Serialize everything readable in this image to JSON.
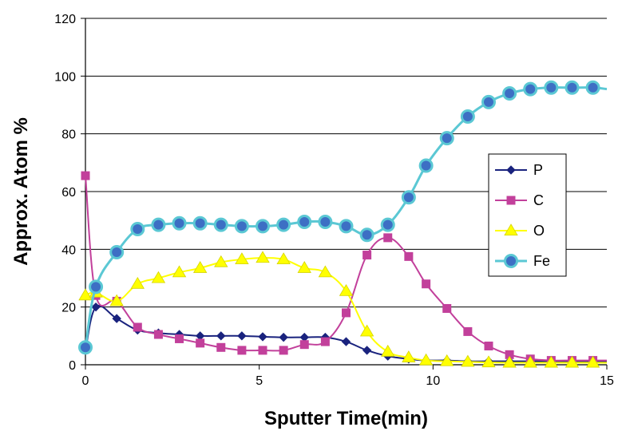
{
  "chart_data": {
    "type": "line",
    "title": "",
    "xlabel": "Sputter Time(min)",
    "ylabel": "Approx. Atom %",
    "xlim": [
      0,
      15
    ],
    "ylim": [
      0,
      120
    ],
    "xticks": [
      "0",
      "5",
      "10",
      "15"
    ],
    "yticks": [
      "0",
      "20",
      "40",
      "60",
      "80",
      "100",
      "120"
    ],
    "grid": "horizontal",
    "legend_position": "right",
    "series": [
      {
        "name": "P",
        "color": "#1a237e",
        "marker": "diamond",
        "x": [
          0,
          0.3,
          0.9,
          1.5,
          2.1,
          2.7,
          3.3,
          3.9,
          4.5,
          5.1,
          5.7,
          6.3,
          6.9,
          7.5,
          8.1,
          8.7,
          9.3,
          9.8,
          10.4,
          11.0,
          11.6,
          12.2,
          12.8,
          13.4,
          14.0,
          14.6,
          15.0
        ],
        "y": [
          5,
          20,
          16,
          12,
          11,
          10.5,
          10,
          10,
          10,
          9.7,
          9.5,
          9.5,
          9.5,
          8,
          5,
          3,
          2,
          1.5,
          1.5,
          1.2,
          1.2,
          1.2,
          1.2,
          1.2,
          1.2,
          1.2,
          1.2
        ]
      },
      {
        "name": "C",
        "color": "#c2409b",
        "marker": "square",
        "x": [
          0,
          0.3,
          0.9,
          1.5,
          2.1,
          2.7,
          3.3,
          3.9,
          4.5,
          5.1,
          5.7,
          6.3,
          6.9,
          7.5,
          8.1,
          8.7,
          9.3,
          9.8,
          10.4,
          11.0,
          11.6,
          12.2,
          12.8,
          13.4,
          14.0,
          14.6,
          15.0
        ],
        "y": [
          65.5,
          24,
          22,
          13,
          10.5,
          9,
          7.5,
          6,
          5,
          5,
          5,
          7,
          8,
          18,
          38,
          44,
          37.5,
          28,
          19.5,
          11.5,
          6.5,
          3.5,
          2,
          1.5,
          1.5,
          1.5,
          1.5
        ]
      },
      {
        "name": "O",
        "color": "#ffff00",
        "marker": "triangle",
        "x": [
          0,
          0.3,
          0.9,
          1.5,
          2.1,
          2.7,
          3.3,
          3.9,
          4.5,
          5.1,
          5.7,
          6.3,
          6.9,
          7.5,
          8.1,
          8.7,
          9.3,
          9.8,
          10.4,
          11.0,
          11.6,
          12.2,
          12.8,
          13.4,
          14.0,
          14.6,
          15.0
        ],
        "y": [
          24,
          25,
          22,
          28,
          30,
          32,
          33.5,
          35.5,
          36.5,
          37,
          36.5,
          33.5,
          32,
          25.5,
          11.5,
          4.5,
          2.5,
          1.5,
          1.2,
          1,
          0.8,
          0.7,
          0.7,
          0.7,
          0.7,
          0.7,
          0.7
        ]
      },
      {
        "name": "Fe",
        "color": "#5bc8d4",
        "marker": "circle",
        "x": [
          0,
          0.3,
          0.9,
          1.5,
          2.1,
          2.7,
          3.3,
          3.9,
          4.5,
          5.1,
          5.7,
          6.3,
          6.9,
          7.5,
          8.1,
          8.7,
          9.3,
          9.8,
          10.4,
          11.0,
          11.6,
          12.2,
          12.8,
          13.4,
          14.0,
          14.6,
          15.0
        ],
        "y": [
          6,
          27,
          39,
          47,
          48.5,
          49,
          49,
          48.5,
          48,
          48,
          48.5,
          49.5,
          49.5,
          48,
          45,
          48.5,
          58,
          69,
          78.5,
          86,
          91,
          94,
          95.5,
          96,
          96,
          96,
          95.5
        ]
      }
    ]
  }
}
